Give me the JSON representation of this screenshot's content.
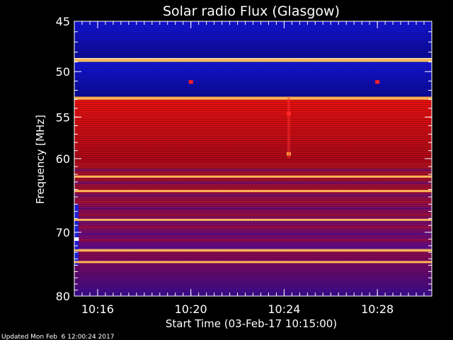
{
  "chart_data": {
    "type": "heatmap",
    "title": "Solar radio Flux (Glasgow)",
    "xlabel": "Start Time (03-Feb-17 10:15:00)",
    "ylabel": "Frequency [MHz]",
    "x_range": [
      "10:15:00",
      "10:30:20"
    ],
    "y_range_mhz": [
      45,
      80
    ],
    "y_scale": "log",
    "x_ticks": [
      "10:16",
      "10:20",
      "10:24",
      "10:28"
    ],
    "x_tick_minutes": [
      1,
      5,
      9,
      13
    ],
    "y_ticks": [
      45,
      50,
      55,
      60,
      70,
      80
    ],
    "colormap": [
      "#000000",
      "#1010c0",
      "#3030ff",
      "#6a0a8a",
      "#b00010",
      "#ff1010",
      "#ffa030",
      "#ffffe0"
    ],
    "bands": [
      {
        "from_mhz": 45.0,
        "to_mhz": 48.6,
        "level": "blue"
      },
      {
        "from_mhz": 48.6,
        "to_mhz": 49.0,
        "level": "white"
      },
      {
        "from_mhz": 49.0,
        "to_mhz": 52.7,
        "level": "blue"
      },
      {
        "from_mhz": 52.7,
        "to_mhz": 53.1,
        "level": "bright"
      },
      {
        "from_mhz": 53.1,
        "to_mhz": 60.5,
        "level": "red"
      },
      {
        "from_mhz": 60.5,
        "to_mhz": 72.5,
        "level": "mixed"
      },
      {
        "from_mhz": 72.5,
        "to_mhz": 72.9,
        "level": "white"
      },
      {
        "from_mhz": 72.9,
        "to_mhz": 80.0,
        "level": "purple"
      }
    ],
    "bright_lines_mhz": [
      48.8,
      52.9,
      62.3,
      64.2,
      68.2,
      72.7,
      74.5
    ],
    "events": [
      {
        "time_min": 9.2,
        "freq_mhz": 59.4,
        "level": "bright"
      },
      {
        "time_min": 9.2,
        "freq_mhz": 54.6,
        "level": "red"
      },
      {
        "time_min": 5.0,
        "freq_mhz": 51.1,
        "level": "red"
      },
      {
        "time_min": 13.0,
        "freq_mhz": 51.1,
        "level": "red"
      },
      {
        "time_min": 0.1,
        "freq_mhz": 71.0,
        "level": "white"
      }
    ]
  },
  "footer": {
    "updated": "Updated Mon Feb  6 12:00:24 2017"
  }
}
